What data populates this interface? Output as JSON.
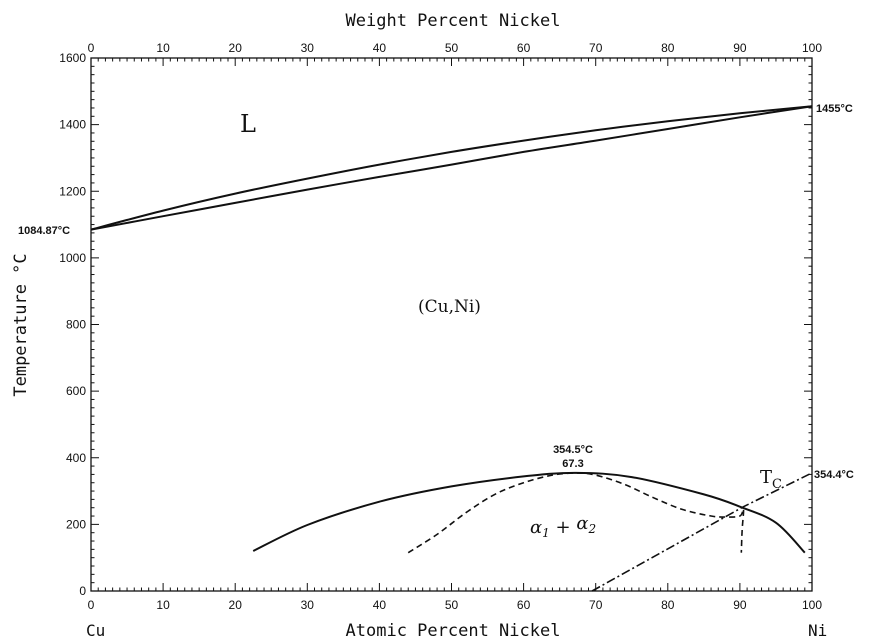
{
  "chart_data": {
    "type": "line",
    "title": "",
    "x_top_label": "Weight Percent Nickel",
    "x_bottom_label": "Atomic Percent Nickel",
    "ylabel": "Temperature °C",
    "xlim": [
      0,
      100
    ],
    "ylim": [
      0,
      1600
    ],
    "x_ticks": [
      "0",
      "10",
      "20",
      "30",
      "40",
      "50",
      "60",
      "70",
      "80",
      "90",
      "100"
    ],
    "y_ticks": [
      "0",
      "200",
      "400",
      "600",
      "800",
      "1000",
      "1200",
      "1400",
      "1600"
    ],
    "left_end_label": "Cu",
    "right_end_label": "Ni",
    "regions": {
      "liquid": "L",
      "solid": "(Cu,Ni)",
      "miscibility_gap": "α1 + α2",
      "curie": "TC"
    },
    "annotations": {
      "cu_melting": "1084.87°C",
      "ni_melting": "1455°C",
      "critical_temp": "354.5°C",
      "critical_comp": "67.3",
      "ni_curie": "354.4°C"
    },
    "series": [
      {
        "line_style": "solid",
        "x": [
          0,
          10,
          20,
          30,
          40,
          50,
          60,
          70,
          80,
          90,
          100
        ],
        "y": [
          1084.87,
          1142,
          1193,
          1238,
          1280,
          1318,
          1352,
          1383,
          1410,
          1434,
          1455
        ]
      },
      {
        "line_style": "solid",
        "x": [
          0,
          10,
          20,
          30,
          40,
          50,
          60,
          70,
          80,
          90,
          100
        ],
        "y": [
          1084.87,
          1125,
          1165,
          1205,
          1243,
          1280,
          1318,
          1352,
          1387,
          1422,
          1455
        ]
      },
      {
        "line_style": "solid",
        "x": [
          22.5,
          30,
          40,
          50,
          60,
          67.3,
          75,
          85,
          90,
          95,
          99
        ],
        "y": [
          120,
          198,
          268,
          314,
          344,
          354.5,
          342,
          290,
          253,
          205,
          115
        ]
      },
      {
        "line_style": "dashed",
        "x": [
          44,
          48,
          52,
          56,
          60,
          64,
          67.3,
          70,
          74,
          78,
          82,
          86,
          88,
          90,
          90.5,
          90.3,
          90.2
        ],
        "y": [
          115,
          170,
          235,
          290,
          325,
          348,
          354,
          348,
          320,
          280,
          245,
          225,
          222,
          225,
          245,
          180,
          115
        ]
      },
      {
        "line_style": "dashdot",
        "x": [
          69.5,
          90.5,
          100
        ],
        "y": [
          0,
          253,
          354.4
        ]
      }
    ]
  }
}
